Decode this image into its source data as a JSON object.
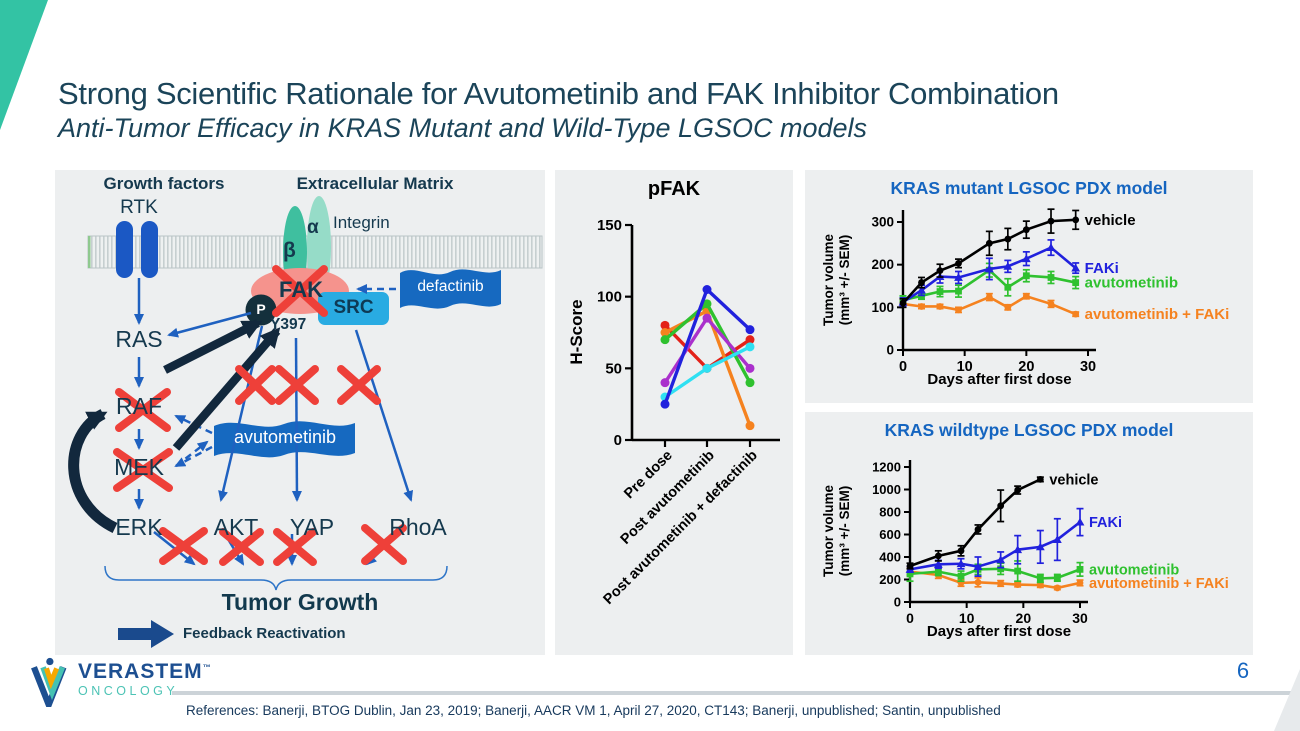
{
  "slide": {
    "title": "Strong Scientific Rationale for Avutometinib and FAK Inhibitor Combination",
    "subtitle": "Anti-Tumor Efficacy in KRAS Mutant and Wild-Type LGSOC models",
    "page_number": "6",
    "references": "References: Banerji, BTOG Dublin, Jan 23, 2019; Banerji, AACR VM 1, April 27, 2020, CT143; Banerji, unpublished; Santin, unpublished",
    "accent_teal": "#33c3a4",
    "title_color": "#1b4459"
  },
  "logo": {
    "name": "VERASTEM",
    "tm": "™",
    "sub": "ONCOLOGY"
  },
  "pathway": {
    "growth_factors": "Growth factors",
    "ecm": "Extracellular Matrix",
    "rtk": "RTK",
    "integrin": "Integrin",
    "alpha": "α",
    "beta": "β",
    "fak": "FAK",
    "p": "P",
    "y397": "Y397",
    "src": "SRC",
    "defactinib": "defactinib",
    "ras": "RAS",
    "raf": "RAF",
    "mek": "MEK",
    "erk": "ERK",
    "akt": "AKT",
    "yap": "YAP",
    "rhoa": "RhoA",
    "avutometinib": "avutometinib",
    "tumor_growth": "Tumor Growth",
    "feedback": "Feedback Reactivation",
    "colors": {
      "node_text": "#15394e",
      "arrow_blue": "#1f61c0",
      "arrow_navy": "#12283d",
      "red_x": "#ee4039",
      "fak_fill": "#f5938d",
      "src_fill": "#29abe2",
      "banner_fill": "#1669c0",
      "rtk_fill": "#1b58c4",
      "integrin_beta": "#3fbf9f",
      "integrin_alpha": "#96dcc8"
    }
  },
  "chart_data": [
    {
      "id": "pfak",
      "type": "line",
      "title": "pFAK",
      "ylabel": "H-Score",
      "ylim": [
        0,
        150
      ],
      "yticks": [
        0,
        50,
        100,
        150
      ],
      "categories": [
        "Pre dose",
        "Post avutometinib",
        "Post avutometinib + defactinib"
      ],
      "series": [
        {
          "name": "patient-red",
          "color": "#e32219",
          "marker": "circle",
          "values": [
            80,
            50,
            70
          ]
        },
        {
          "name": "patient-orange",
          "color": "#f5821f",
          "marker": "circle",
          "values": [
            75,
            90,
            10
          ]
        },
        {
          "name": "patient-green",
          "color": "#2fc12f",
          "marker": "circle",
          "values": [
            70,
            95,
            40
          ]
        },
        {
          "name": "patient-purple",
          "color": "#aa30cc",
          "marker": "circle",
          "values": [
            40,
            85,
            50
          ]
        },
        {
          "name": "patient-cyan",
          "color": "#2fe0f2",
          "marker": "circle",
          "values": [
            30,
            50,
            65
          ]
        },
        {
          "name": "patient-blue",
          "color": "#2121dd",
          "marker": "circle",
          "values": [
            25,
            105,
            77
          ]
        }
      ]
    },
    {
      "id": "kras-mutant",
      "type": "line",
      "title": "KRAS mutant LGSOC PDX model",
      "xlabel": "Days after first dose",
      "ylabel": [
        "Tumor volume",
        "(mm³ +/- SEM)"
      ],
      "xlim": [
        0,
        30
      ],
      "xticks": [
        0,
        10,
        20,
        30
      ],
      "ylim": [
        0,
        330
      ],
      "yticks": [
        0,
        100,
        200,
        300
      ],
      "x": [
        0,
        3,
        6,
        9,
        14,
        17,
        20,
        24,
        28
      ],
      "series": [
        {
          "name": "avutometinib + FAKi",
          "color": "#f5821f",
          "marker": "circle",
          "values": [
            108,
            102,
            102,
            94,
            124,
            100,
            126,
            108,
            84
          ],
          "err": [
            6,
            5,
            5,
            6,
            8,
            6,
            6,
            8,
            5
          ]
        },
        {
          "name": "avutometinib",
          "color": "#2fc12f",
          "marker": "square",
          "values": [
            117,
            127,
            137,
            138,
            187,
            147,
            174,
            170,
            158
          ],
          "err": [
            10,
            8,
            12,
            14,
            16,
            20,
            14,
            14,
            14
          ]
        },
        {
          "name": "FAKi",
          "color": "#2121dd",
          "marker": "triangle",
          "values": [
            112,
            140,
            172,
            170,
            190,
            196,
            214,
            240,
            192
          ],
          "err": [
            10,
            12,
            15,
            14,
            25,
            14,
            16,
            18,
            12
          ]
        },
        {
          "name": "vehicle",
          "color": "#000000",
          "marker": "circle",
          "values": [
            110,
            158,
            186,
            203,
            250,
            260,
            282,
            302,
            305
          ],
          "err": [
            10,
            12,
            15,
            10,
            28,
            25,
            20,
            28,
            22
          ]
        }
      ]
    },
    {
      "id": "kras-wildtype",
      "type": "line",
      "title": "KRAS wildtype LGSOC PDX model",
      "xlabel": "Days after first dose",
      "ylabel": [
        "Tumor volume",
        "(mm³ +/- SEM)"
      ],
      "xlim": [
        0,
        30
      ],
      "xticks": [
        0,
        10,
        20,
        30
      ],
      "ylim": [
        0,
        1200
      ],
      "yticks": [
        0,
        200,
        400,
        600,
        800,
        1000,
        1200
      ],
      "x": [
        0,
        5,
        9,
        12,
        16,
        19,
        23,
        26,
        30
      ],
      "series": [
        {
          "name": "avutometinib + FAKi",
          "color": "#f5821f",
          "marker": "circle",
          "values": [
            270,
            240,
            170,
            175,
            165,
            155,
            150,
            125,
            170
          ],
          "err": [
            30,
            30,
            30,
            40,
            25,
            20,
            20,
            15,
            25
          ]
        },
        {
          "name": "avutometinib",
          "color": "#2fc12f",
          "marker": "square",
          "values": [
            250,
            270,
            230,
            290,
            295,
            275,
            210,
            215,
            290
          ],
          "err": [
            65,
            35,
            45,
            45,
            50,
            90,
            35,
            30,
            60
          ]
        },
        {
          "name": "FAKi",
          "color": "#2121dd",
          "marker": "triangle",
          "values": [
            290,
            335,
            340,
            315,
            375,
            465,
            490,
            555,
            710
          ],
          "err": [
            25,
            35,
            45,
            85,
            70,
            125,
            145,
            185,
            120
          ]
        },
        {
          "name": "vehicle",
          "color": "#000000",
          "marker": "circle",
          "x": [
            0,
            5,
            9,
            12,
            16,
            19,
            23
          ],
          "values": [
            320,
            410,
            455,
            645,
            855,
            995,
            1090
          ],
          "err": [
            25,
            45,
            45,
            40,
            140,
            35,
            20
          ]
        }
      ]
    }
  ]
}
